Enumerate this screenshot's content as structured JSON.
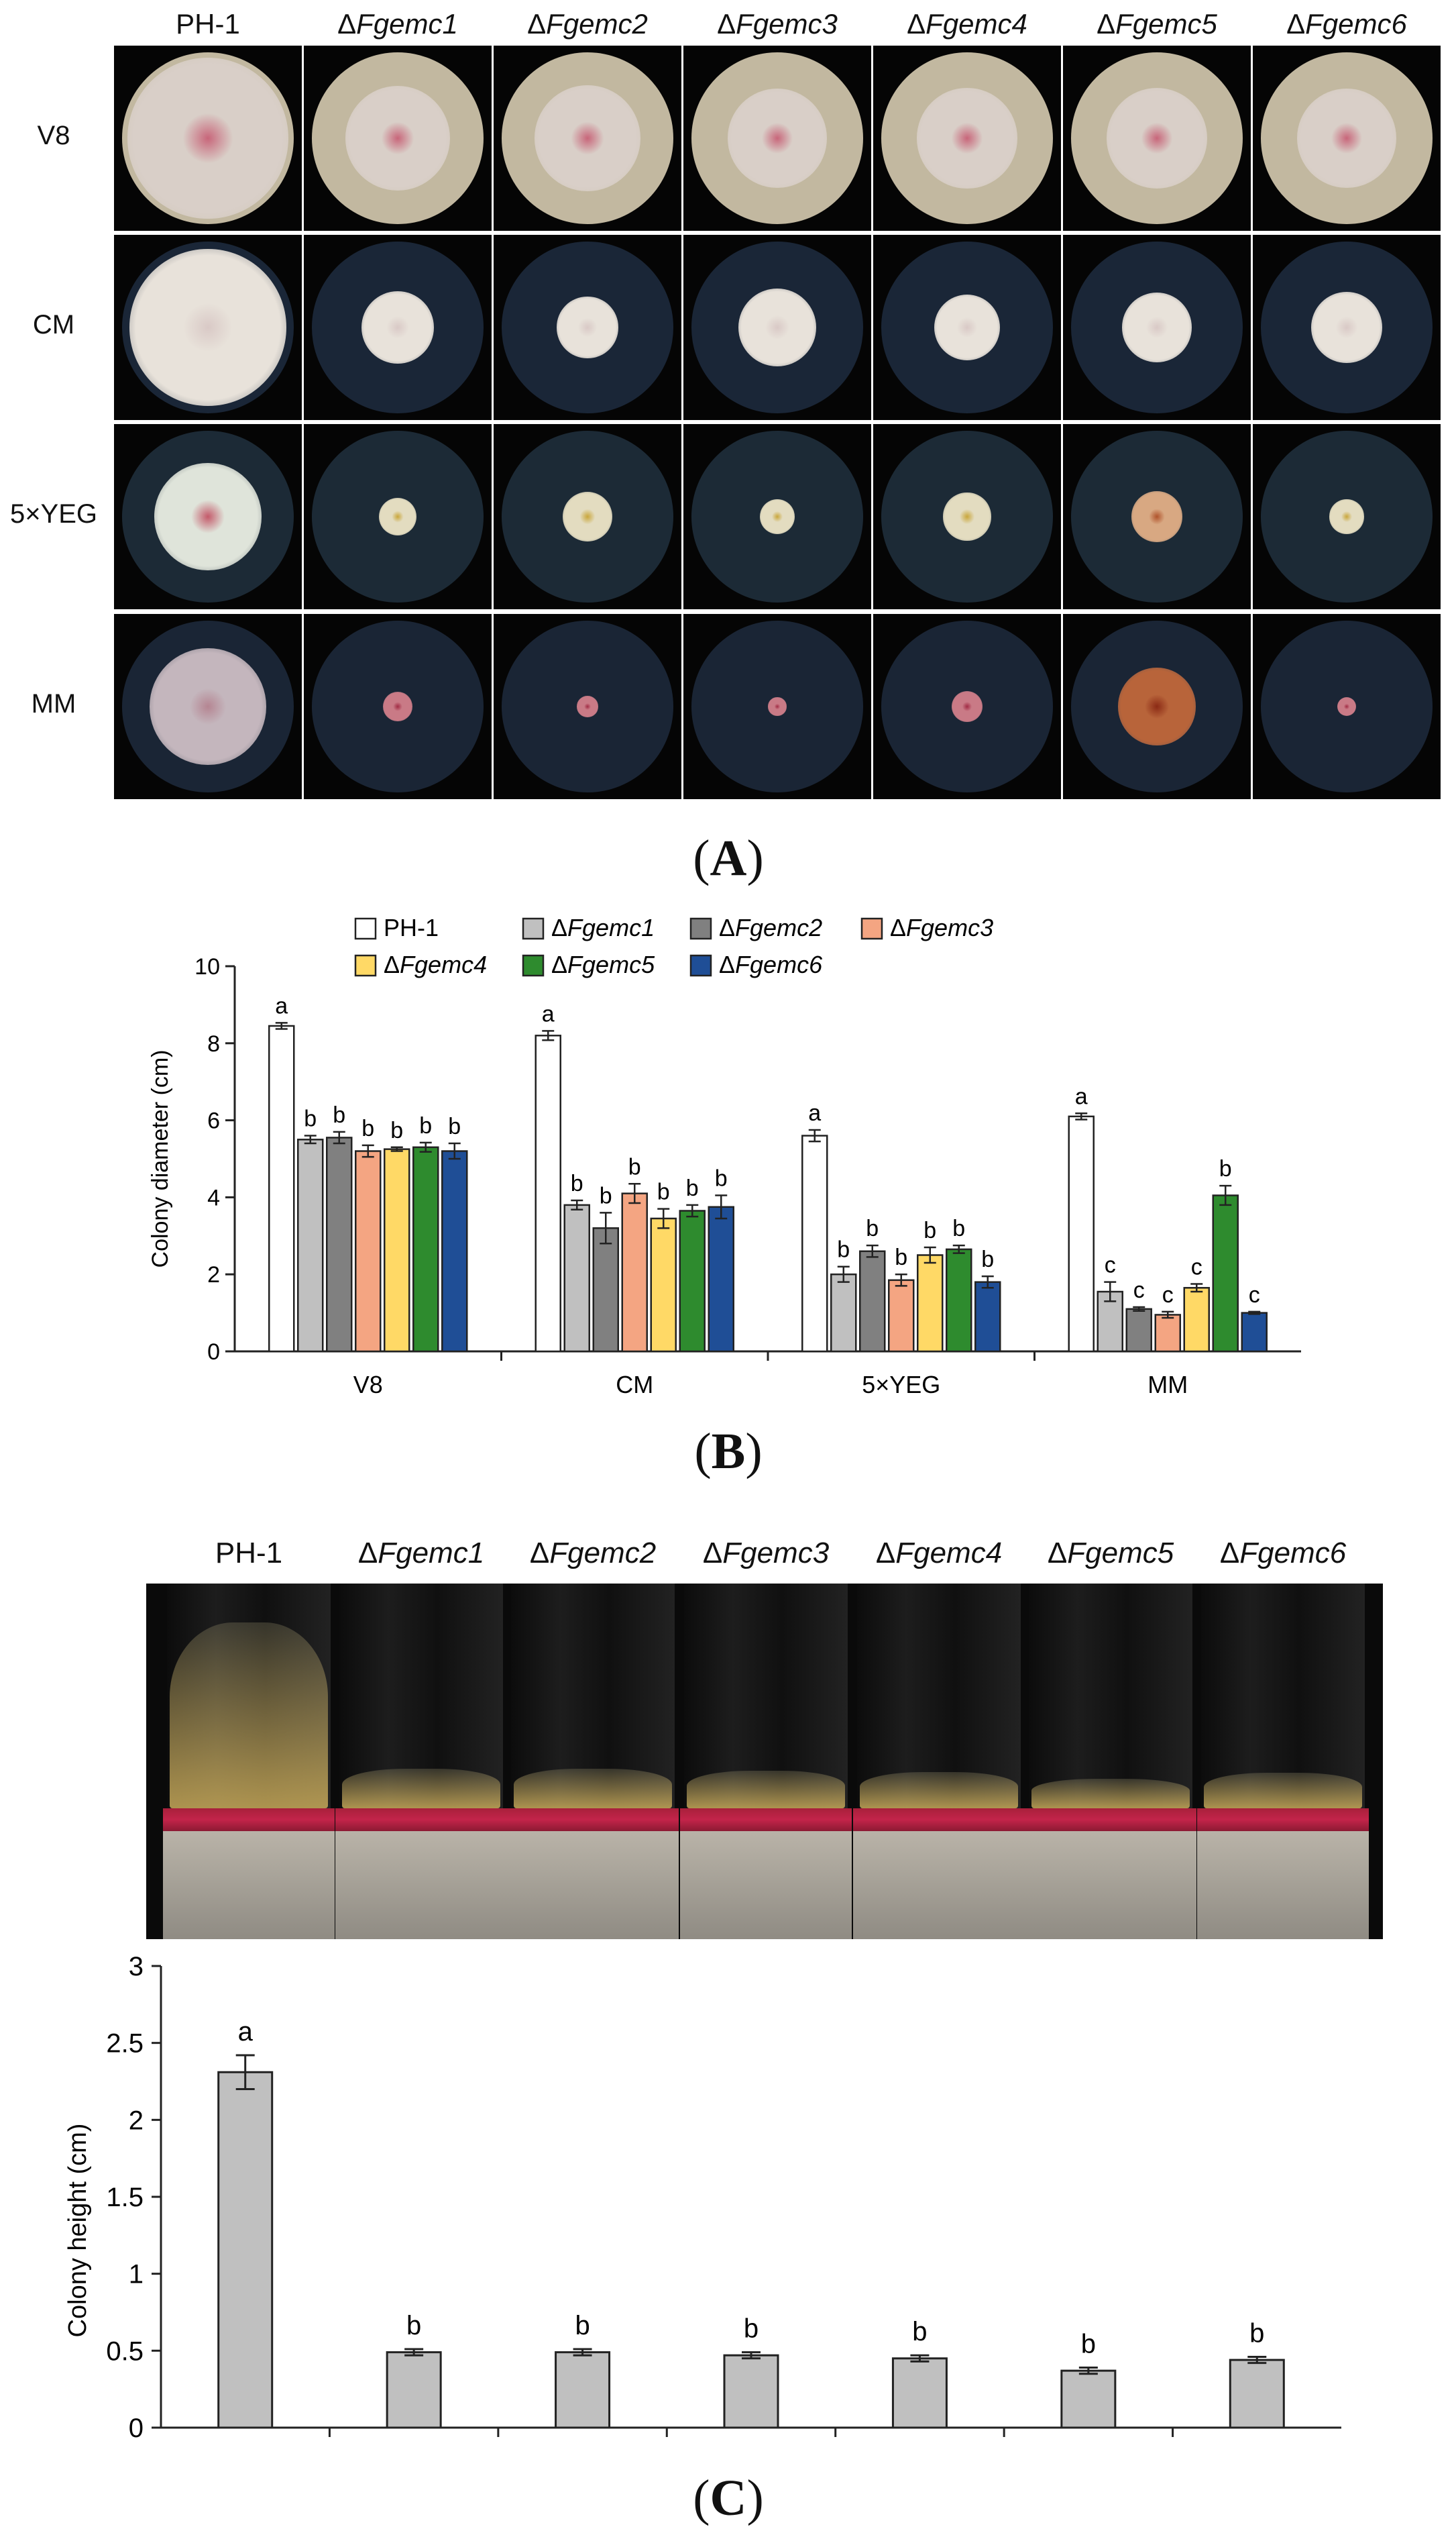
{
  "strains": [
    "PH-1",
    "ΔFgemc1",
    "ΔFgemc2",
    "ΔFgemc3",
    "ΔFgemc4",
    "ΔFgemc5",
    "ΔFgemc6"
  ],
  "strain_parts": [
    {
      "prefix": "",
      "name": "PH-1",
      "italic": false
    },
    {
      "prefix": "Δ",
      "name": "Fgemc1",
      "italic": true
    },
    {
      "prefix": "Δ",
      "name": "Fgemc2",
      "italic": true
    },
    {
      "prefix": "Δ",
      "name": "Fgemc3",
      "italic": true
    },
    {
      "prefix": "Δ",
      "name": "Fgemc4",
      "italic": true
    },
    {
      "prefix": "Δ",
      "name": "Fgemc5",
      "italic": true
    },
    {
      "prefix": "Δ",
      "name": "Fgemc6",
      "italic": true
    }
  ],
  "media": [
    "V8",
    "CM",
    "5×YEG",
    "MM"
  ],
  "panels": {
    "a": "A",
    "b": "B",
    "c": "C"
  },
  "colors": {
    "PH-1": "#ffffff",
    "ΔFgemc1": "#c0c0c0",
    "ΔFgemc2": "#808080",
    "ΔFgemc3": "#f4a582",
    "ΔFgemc4": "#ffd966",
    "ΔFgemc5": "#2e8b2e",
    "ΔFgemc6": "#1f4e96",
    "height_bar": "#c0c0c0"
  },
  "chart_data": [
    {
      "type": "bar",
      "panel": "B",
      "ylabel": "Colony diameter (cm)",
      "xlabel": "",
      "ylim": [
        0,
        10
      ],
      "yticks": [
        0,
        2,
        4,
        6,
        8,
        10
      ],
      "categories": [
        "V8",
        "CM",
        "5×YEG",
        "MM"
      ],
      "legend_position": "top",
      "series": [
        {
          "name": "PH-1",
          "values": [
            8.45,
            8.2,
            5.6,
            6.1
          ],
          "errors": [
            0.08,
            0.12,
            0.15,
            0.08
          ],
          "letters": [
            "a",
            "a",
            "a",
            "a"
          ]
        },
        {
          "name": "ΔFgemc1",
          "values": [
            5.5,
            3.8,
            2.0,
            1.55
          ],
          "errors": [
            0.1,
            0.12,
            0.2,
            0.25
          ],
          "letters": [
            "b",
            "b",
            "b",
            "c"
          ]
        },
        {
          "name": "ΔFgemc2",
          "values": [
            5.55,
            3.2,
            2.6,
            1.1
          ],
          "errors": [
            0.15,
            0.4,
            0.15,
            0.05
          ],
          "letters": [
            "b",
            "b",
            "b",
            "c"
          ]
        },
        {
          "name": "ΔFgemc3",
          "values": [
            5.2,
            4.1,
            1.85,
            0.95
          ],
          "errors": [
            0.15,
            0.25,
            0.15,
            0.08
          ],
          "letters": [
            "b",
            "b",
            "b",
            "c"
          ]
        },
        {
          "name": "ΔFgemc4",
          "values": [
            5.25,
            3.45,
            2.5,
            1.65
          ],
          "errors": [
            0.05,
            0.25,
            0.2,
            0.1
          ],
          "letters": [
            "b",
            "b",
            "b",
            "c"
          ]
        },
        {
          "name": "ΔFgemc5",
          "values": [
            5.3,
            3.65,
            2.65,
            4.05
          ],
          "errors": [
            0.12,
            0.15,
            0.1,
            0.25
          ],
          "letters": [
            "b",
            "b",
            "b",
            "b"
          ]
        },
        {
          "name": "ΔFgemc6",
          "values": [
            5.2,
            3.75,
            1.8,
            1.0
          ],
          "errors": [
            0.2,
            0.3,
            0.15,
            0.03
          ],
          "letters": [
            "b",
            "b",
            "b",
            "c"
          ]
        }
      ]
    },
    {
      "type": "bar",
      "panel": "C",
      "ylabel": "Colony height (cm)",
      "xlabel": "",
      "ylim": [
        0,
        3
      ],
      "yticks": [
        "0",
        "0.5",
        "1",
        "1.5",
        "2",
        "2.5",
        "3"
      ],
      "categories": [
        "PH-1",
        "ΔFgemc1",
        "ΔFgemc2",
        "ΔFgemc3",
        "ΔFgemc4",
        "ΔFgemc5",
        "ΔFgemc6"
      ],
      "values": [
        2.31,
        0.49,
        0.49,
        0.47,
        0.45,
        0.37,
        0.44
      ],
      "errors": [
        0.11,
        0.02,
        0.02,
        0.02,
        0.02,
        0.02,
        0.02
      ],
      "letters": [
        "a",
        "b",
        "b",
        "b",
        "b",
        "b",
        "b"
      ]
    }
  ]
}
